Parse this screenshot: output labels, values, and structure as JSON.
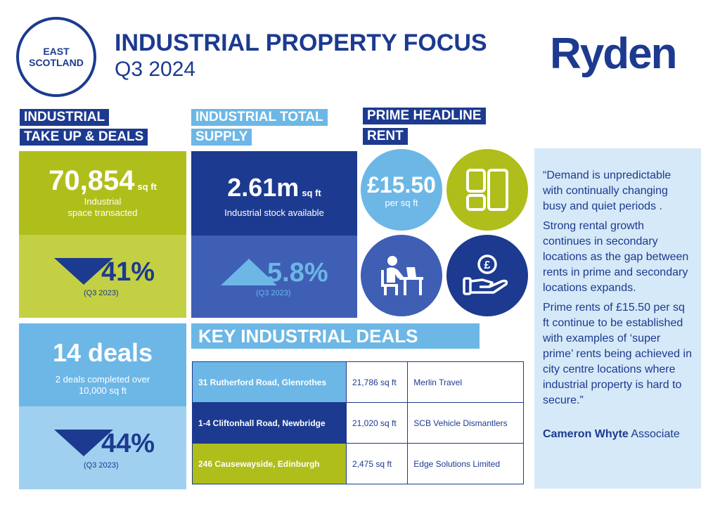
{
  "header": {
    "badge_line1": "EAST",
    "badge_line2": "SCOTLAND",
    "title": "INDUSTRIAL PROPERTY FOCUS",
    "subtitle": "Q3 2024",
    "logo": "Ryden"
  },
  "take_up": {
    "tag_line1": "INDUSTRIAL",
    "tag_line2": "TAKE UP & DEALS",
    "value": "70,854",
    "unit": "sq ft",
    "desc_line1": "Industrial",
    "desc_line2": "space transacted",
    "change": "41%",
    "change_direction": "down",
    "change_period": "(Q3 2023)",
    "deals_value": "14 deals",
    "deals_desc_line1": "2 deals completed over",
    "deals_desc_line2": "10,000 sq ft",
    "deals_change": "44%",
    "deals_change_direction": "down",
    "deals_change_period": "(Q3 2023)"
  },
  "supply": {
    "tag_line1": "INDUSTRIAL TOTAL",
    "tag_line2": "SUPPLY",
    "value": "2.61m",
    "unit": "sq ft",
    "desc": "Industrial stock available",
    "change": "5.8%",
    "change_direction": "up",
    "change_period": "(Q3 2023)"
  },
  "rent": {
    "tag_line1": "PRIME HEADLINE",
    "tag_line2": "RENT",
    "value": "£15.50",
    "desc": "per sq ft"
  },
  "icons": [
    "floorplan-icon",
    "worker-at-desk-icon",
    "hand-with-pound-coin-icon"
  ],
  "key_deals": {
    "heading": "KEY INDUSTRIAL DEALS",
    "rows": [
      {
        "location": "31 Rutherford Road, Glenrothes",
        "size": "21,786 sq ft",
        "occupier": "Merlin Travel",
        "color": "#6cb7e6"
      },
      {
        "location": "1-4 Cliftonhall Road, Newbridge",
        "size": "21,020 sq ft",
        "occupier": "SCB Vehicle Dismantlers",
        "color": "#1c3a8f"
      },
      {
        "location": "246 Causewayside, Edinburgh",
        "size": "2,475 sq ft",
        "occupier": "Edge Solutions Limited",
        "color": "#afbe1a"
      }
    ]
  },
  "quote": {
    "para1": "“Demand is unpredictable with continually changing busy and quiet periods .",
    "para2": "Strong rental growth continues in secondary locations as the gap between rents in prime and secondary locations expands.",
    "para3": "Prime rents of £15.50 per sq ft continue to be established with examples of ‘super prime’ rents being achieved in city centre locations where industrial property is hard to secure.”",
    "author_name": "Cameron Whyte",
    "author_role": "Associate"
  },
  "colors": {
    "navy": "#1c3a8f",
    "mid_blue": "#3f5fb5",
    "light_blue": "#6cb7e6",
    "pale_blue": "#9fd0f0",
    "lime": "#afbe1a",
    "lime_light": "#c4d043",
    "quote_bg": "#d6e9f8"
  }
}
